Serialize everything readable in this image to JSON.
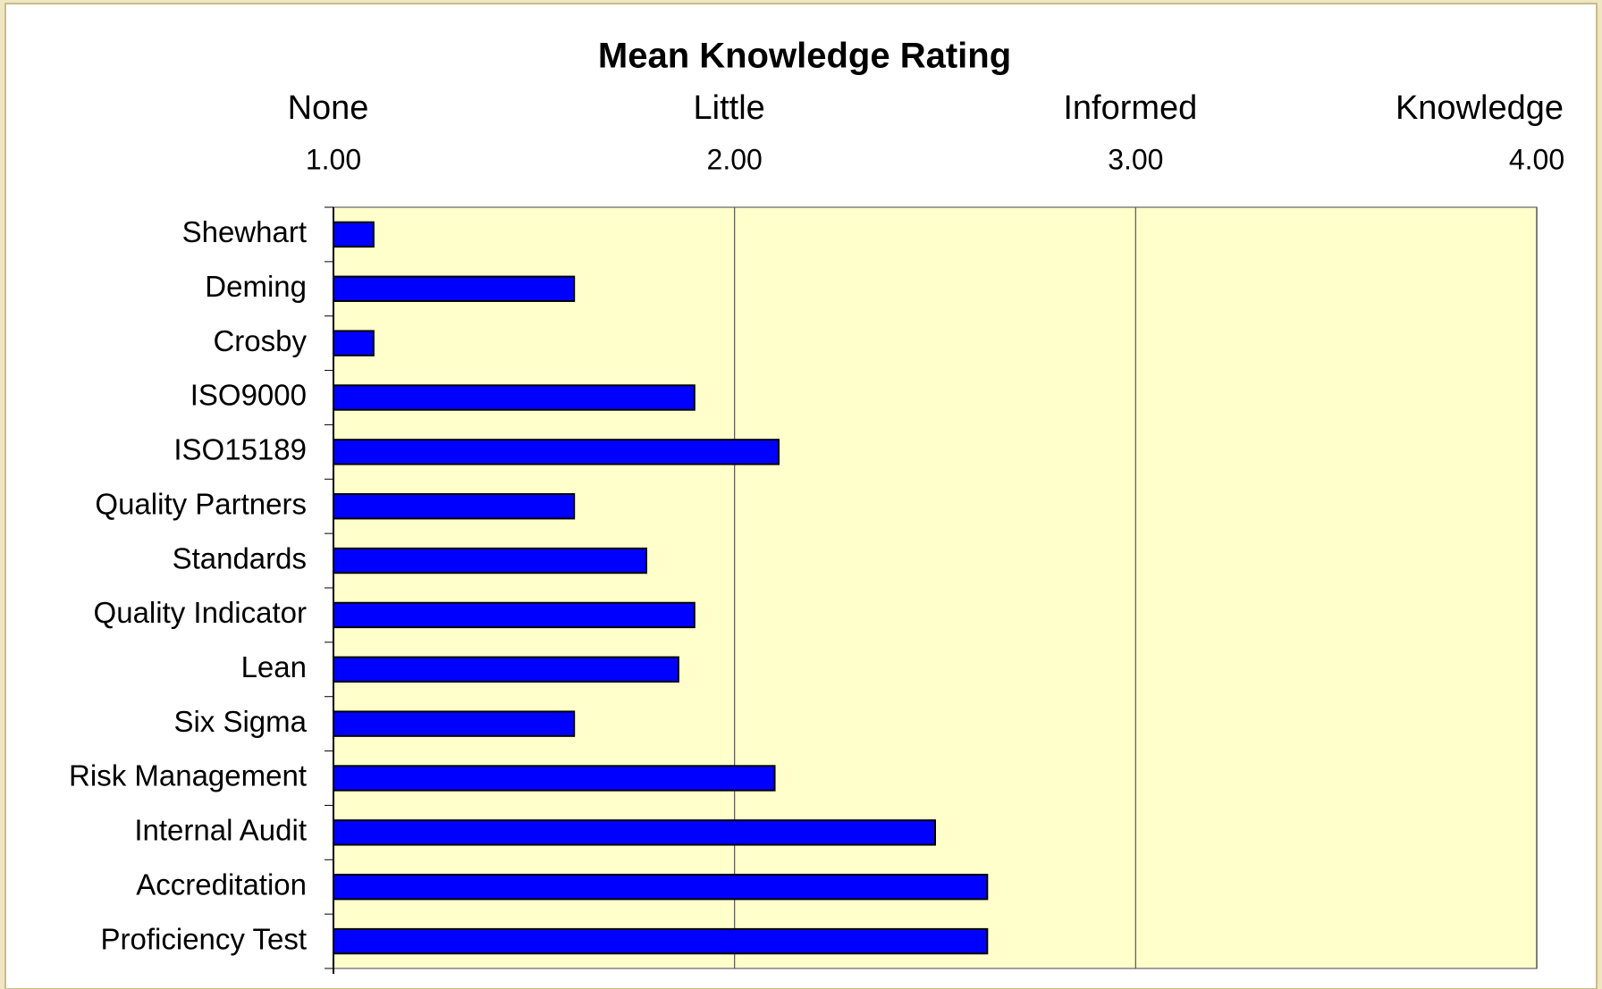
{
  "chart_data": {
    "type": "bar",
    "orientation": "horizontal",
    "title": "Mean Knowledge Rating",
    "categories": [
      "Shewhart",
      "Deming",
      "Crosby",
      "ISO9000",
      "ISO15189",
      "Quality Partners",
      "Standards",
      "Quality Indicator",
      "Lean",
      "Six Sigma",
      "Risk Management",
      "Internal Audit",
      "Accreditation",
      "Proficiency Test"
    ],
    "values": [
      1.1,
      1.6,
      1.1,
      1.9,
      2.11,
      1.6,
      1.78,
      1.9,
      1.86,
      1.6,
      2.1,
      2.5,
      2.63,
      2.63
    ],
    "color": "#0000ff",
    "xlim": [
      1,
      4
    ],
    "xticks": [
      {
        "value": 1,
        "label": "1.00"
      },
      {
        "value": 2,
        "label": "2.00"
      },
      {
        "value": 3,
        "label": "3.00"
      },
      {
        "value": 4,
        "label": "4.00"
      }
    ],
    "x2ticks": [
      {
        "value": 1,
        "label": "None"
      },
      {
        "value": 2,
        "label": "Little"
      },
      {
        "value": 3,
        "label": "Informed"
      },
      {
        "value": 4,
        "label": "Knowledge"
      }
    ],
    "grid": true
  }
}
